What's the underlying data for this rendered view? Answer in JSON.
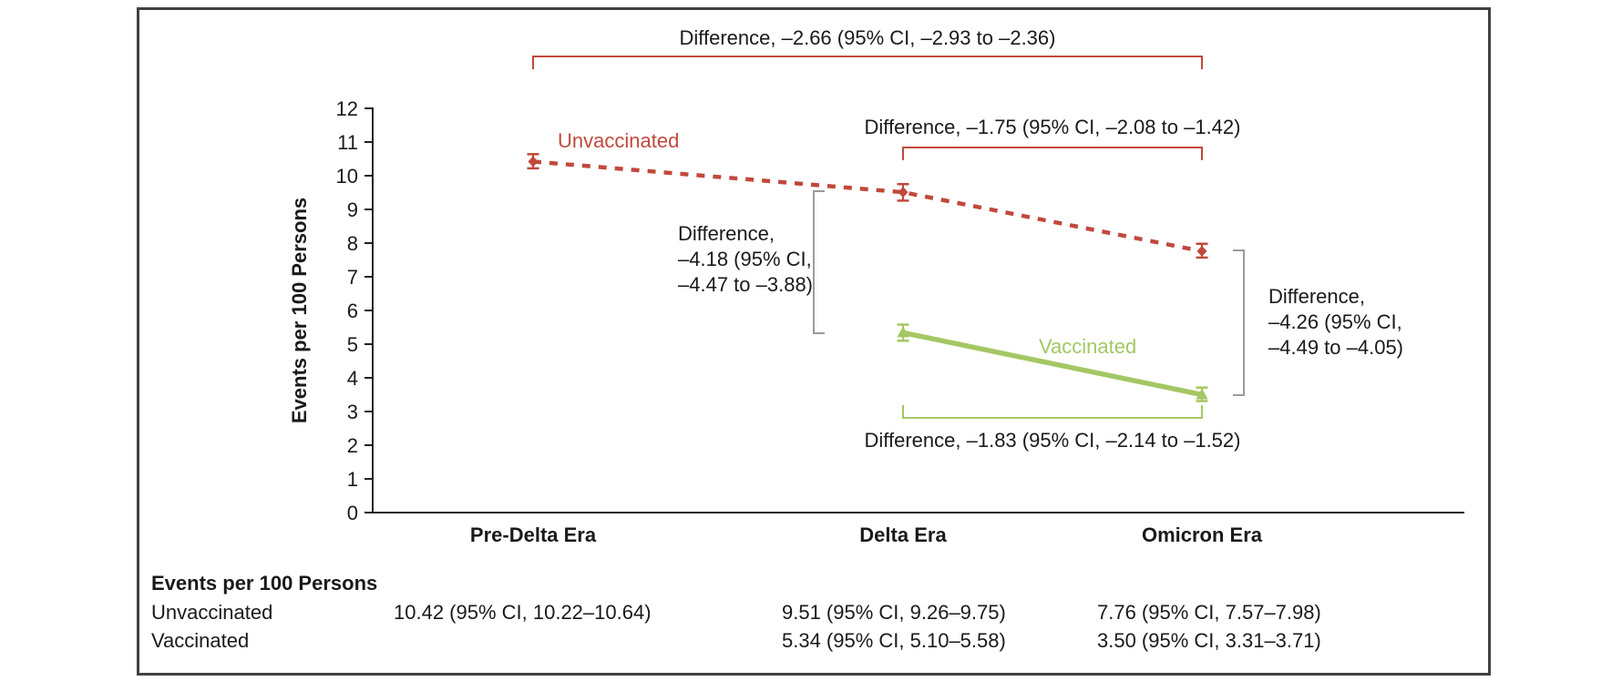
{
  "colors": {
    "unvaccinated": "#c0493c",
    "vaccinated": "#a4c763",
    "bracket_gray": "#9b9b9b",
    "axis": "#231f20",
    "text": "#1a1a1a"
  },
  "chart_data": {
    "type": "line",
    "title": "",
    "ylabel": "Events per 100 Persons",
    "xlabel": "",
    "categories": [
      "Pre-Delta Era",
      "Delta Era",
      "Omicron Era"
    ],
    "ylim": [
      0,
      12
    ],
    "yticks": [
      0,
      1,
      2,
      3,
      4,
      5,
      6,
      7,
      8,
      9,
      10,
      11,
      12
    ],
    "grid": false,
    "legend_position": "inline-labels",
    "series": [
      {
        "name": "Unvaccinated",
        "marker": "diamond",
        "line_style": "dashed",
        "color_key": "unvaccinated",
        "values": [
          10.42,
          9.51,
          7.76
        ],
        "ci": [
          [
            10.22,
            10.64
          ],
          [
            9.26,
            9.75
          ],
          [
            7.57,
            7.98
          ]
        ]
      },
      {
        "name": "Vaccinated",
        "marker": "triangle",
        "line_style": "solid",
        "color_key": "vaccinated",
        "values": [
          null,
          5.34,
          3.5
        ],
        "ci": [
          null,
          [
            5.1,
            5.58
          ],
          [
            3.31,
            3.71
          ]
        ]
      }
    ],
    "annotations": {
      "top_red": "Difference, –2.66 (95% CI, –2.93 to –2.36)",
      "mid_red": "Difference, –1.75 (95% CI, –2.08 to –1.42)",
      "left_gray": "Difference,\n–4.18 (95% CI,\n–4.47 to –3.88)",
      "right_gray": "Difference,\n–4.26 (95% CI,\n–4.49 to –4.05)",
      "bottom_green": "Difference, –1.83 (95% CI, –2.14 to –1.52)"
    }
  },
  "series_labels": {
    "unvaccinated": "Unvaccinated",
    "vaccinated": "Vaccinated"
  },
  "table": {
    "header": "Events per 100 Persons",
    "rows": [
      {
        "label": "Unvaccinated",
        "cells": [
          "10.42 (95% CI, 10.22–10.64)",
          "9.51 (95% CI, 9.26–9.75)",
          "7.76 (95% CI, 7.57–7.98)"
        ]
      },
      {
        "label": "Vaccinated",
        "cells": [
          "",
          "5.34 (95% CI, 5.10–5.58)",
          "3.50 (95% CI, 3.31–3.71)"
        ]
      }
    ]
  }
}
